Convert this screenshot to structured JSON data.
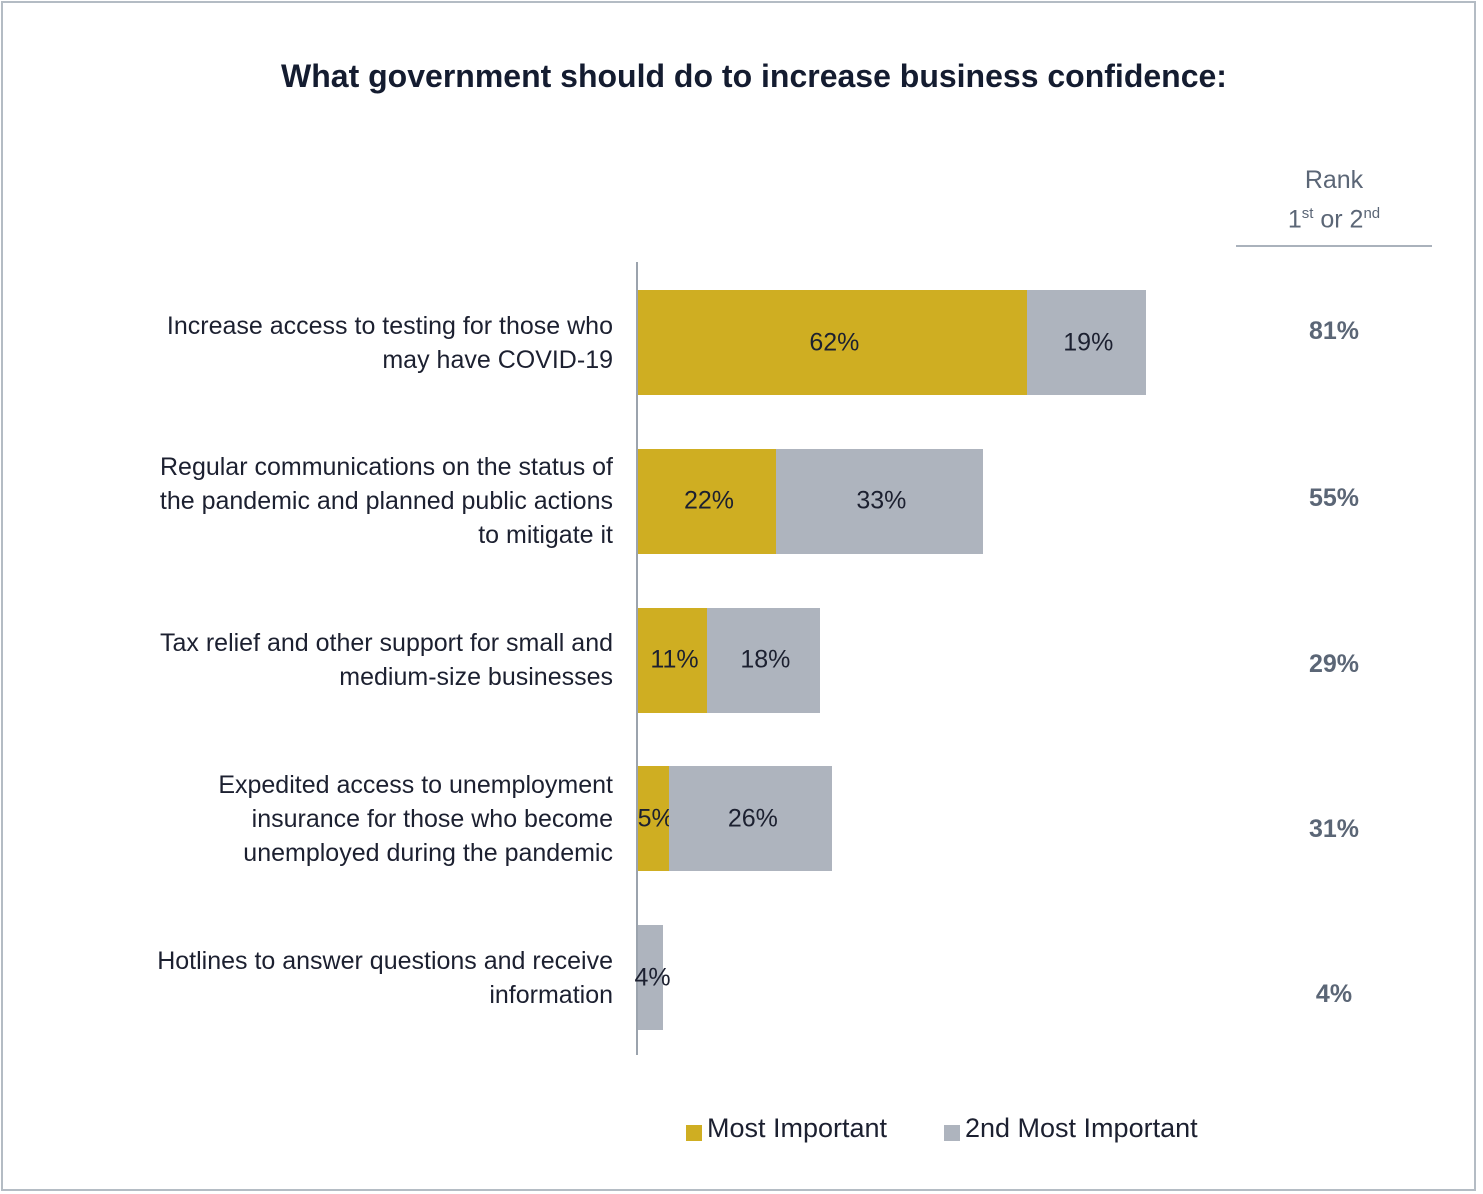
{
  "chart_data": {
    "type": "bar",
    "orientation": "horizontal",
    "stacked": true,
    "title": "What government should do to increase business confidence:",
    "categories": [
      "Increase access to testing for those who may have COVID-19",
      "Regular communications on the status of the pandemic and planned public actions to mitigate it",
      "Tax relief and other support for small and medium-size businesses",
      "Expedited access to unemployment insurance for those who become unemployed during the pandemic",
      "Hotlines to answer questions and receive information"
    ],
    "category_lines": [
      [
        "Increase access to testing for those who",
        "may have COVID-19"
      ],
      [
        "Regular communications on the status of",
        "the pandemic and planned public actions",
        "to mitigate it"
      ],
      [
        "Tax relief and other support for small and",
        "medium-size businesses"
      ],
      [
        "Expedited access to unemployment",
        "insurance for those who become",
        "unemployed during the pandemic"
      ],
      [
        "Hotlines to answer questions and receive",
        "information"
      ]
    ],
    "series": [
      {
        "name": "Most Important",
        "values": [
          62,
          22,
          11,
          5,
          0
        ],
        "labels": [
          "62%",
          "22%",
          "11%",
          "5%",
          ""
        ],
        "color": "#cfae22"
      },
      {
        "name": "2nd Most Important",
        "values": [
          19,
          33,
          18,
          26,
          4
        ],
        "labels": [
          "19%",
          "33%",
          "18%",
          "26%",
          "4%"
        ],
        "color": "#aeb4be"
      }
    ],
    "rank_header": {
      "line1": "Rank",
      "first": "1",
      "first_sup": "st",
      "or": " or ",
      "second": "2",
      "second_sup": "nd"
    },
    "rank_values": [
      "81%",
      "55%",
      "29%",
      "31%",
      "4%"
    ],
    "legend_position": "bottom",
    "grid": false
  }
}
